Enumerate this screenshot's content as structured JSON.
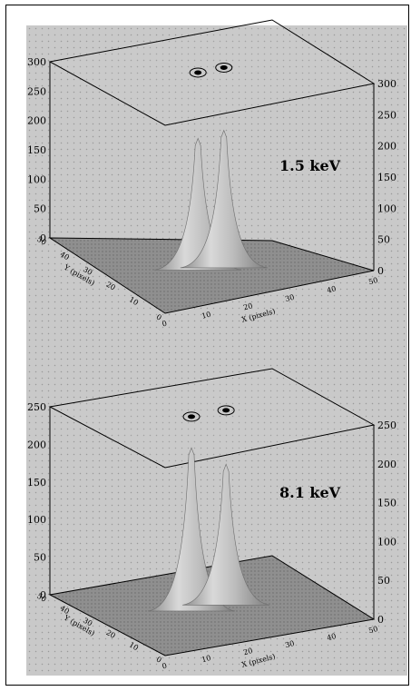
{
  "chart_data": [
    {
      "type": "surface",
      "annotation": "1.5 keV",
      "xlabel": "X (pixels)",
      "ylabel": "Y (pixels)",
      "xticks": [
        "0",
        "10",
        "20",
        "30",
        "40",
        "50"
      ],
      "yticks": [
        "0",
        "10",
        "20",
        "30",
        "40",
        "50"
      ],
      "zticks": [
        "0",
        "50",
        "100",
        "150",
        "200",
        "250",
        "300"
      ],
      "zlim": [
        0,
        300
      ],
      "peaks": [
        {
          "x": 22,
          "y": 27,
          "z": 215
        },
        {
          "x": 28,
          "y": 27,
          "z": 225
        }
      ],
      "contour_plane": true
    },
    {
      "type": "surface",
      "annotation": "8.1 keV",
      "xlabel": "X (pixels)",
      "ylabel": "Y (pixels)",
      "xticks": [
        "0",
        "10",
        "20",
        "30",
        "40",
        "50"
      ],
      "yticks": [
        "0",
        "10",
        "20",
        "30",
        "40",
        "50"
      ],
      "zticks": [
        "0",
        "50",
        "100",
        "150",
        "200",
        "250"
      ],
      "zlim": [
        0,
        250
      ],
      "peaks": [
        {
          "x": 21,
          "y": 28,
          "z": 210
        },
        {
          "x": 29,
          "y": 28,
          "z": 180
        }
      ],
      "contour_plane": true
    }
  ]
}
